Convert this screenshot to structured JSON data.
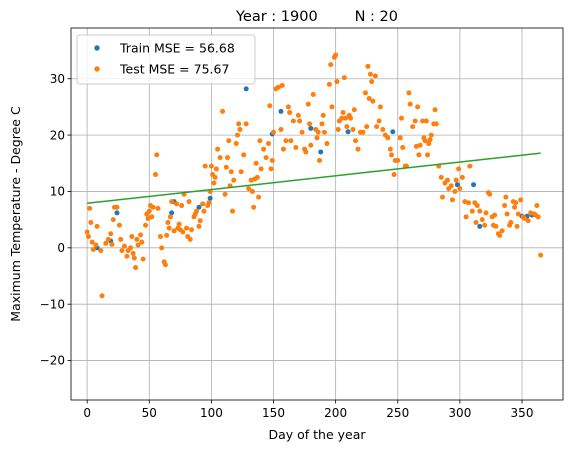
{
  "chart_data": {
    "type": "scatter",
    "title": "Year : 1900        N : 20",
    "xlabel": "Day of the year",
    "ylabel": "Maximum Temperature - Degree C",
    "xlim": [
      -13,
      383
    ],
    "ylim": [
      -27,
      39
    ],
    "xticks": [
      0,
      50,
      100,
      150,
      200,
      250,
      300,
      350
    ],
    "yticks": [
      -20,
      -10,
      0,
      10,
      20,
      30
    ],
    "grid": true,
    "legend_position": "top-left",
    "colors": {
      "train": "#1f77b4",
      "test": "#ff7f0e",
      "fit": "#2ca02c"
    },
    "series": [
      {
        "name": "Train MSE = 56.68",
        "kind": "points",
        "points": [
          [
            8,
            0
          ],
          [
            19,
            1.2
          ],
          [
            24,
            6.2
          ],
          [
            68,
            6.2
          ],
          [
            70,
            8.2
          ],
          [
            90,
            7.2
          ],
          [
            99,
            8.8
          ],
          [
            128,
            28.2
          ],
          [
            149,
            20.2
          ],
          [
            156,
            24.2
          ],
          [
            180,
            21.2
          ],
          [
            188,
            17
          ],
          [
            210,
            20.6
          ],
          [
            246,
            20.6
          ],
          [
            298,
            11.2
          ],
          [
            311,
            11.2
          ],
          [
            316,
            3.8
          ],
          [
            350,
            5.6
          ],
          [
            354,
            5.6
          ],
          [
            358,
            5.8
          ]
        ]
      },
      {
        "name": "Test MSE = 75.67",
        "kind": "points",
        "points": [
          [
            0,
            2.8
          ],
          [
            1,
            2
          ],
          [
            2,
            7
          ],
          [
            3,
            4.5
          ],
          [
            4,
            1
          ],
          [
            5,
            -0.3
          ],
          [
            7,
            0.5
          ],
          [
            8,
            3.8
          ],
          [
            11,
            -0.5
          ],
          [
            12,
            -8.5
          ],
          [
            15,
            0.8
          ],
          [
            17,
            1.5
          ],
          [
            19,
            2.5
          ],
          [
            20,
            0.6
          ],
          [
            21,
            5
          ],
          [
            22,
            7.2
          ],
          [
            24,
            7.2
          ],
          [
            26,
            4
          ],
          [
            27,
            1.5
          ],
          [
            28,
            -0.5
          ],
          [
            30,
            0.3
          ],
          [
            32,
            -1.5
          ],
          [
            33,
            -0.5
          ],
          [
            35,
            0
          ],
          [
            36,
            2
          ],
          [
            37,
            -1
          ],
          [
            38,
            -1.8
          ],
          [
            39,
            -3.5
          ],
          [
            40,
            1.5
          ],
          [
            41,
            0.5
          ],
          [
            43,
            2.3
          ],
          [
            44,
            1
          ],
          [
            45,
            -2
          ],
          [
            47,
            4
          ],
          [
            48,
            6
          ],
          [
            49,
            5.2
          ],
          [
            50,
            6.5
          ],
          [
            51,
            7.5
          ],
          [
            52,
            5.5
          ],
          [
            53,
            7.2
          ],
          [
            55,
            13
          ],
          [
            56,
            16.5
          ],
          [
            57,
            7
          ],
          [
            59,
            2
          ],
          [
            60,
            0
          ],
          [
            62,
            -2.5
          ],
          [
            63,
            -3
          ],
          [
            64,
            2.2
          ],
          [
            65,
            4.5
          ],
          [
            66,
            3.5
          ],
          [
            67,
            5.5
          ],
          [
            68,
            8.2
          ],
          [
            70,
            3
          ],
          [
            72,
            7.8
          ],
          [
            73,
            3.5
          ],
          [
            74,
            4.2
          ],
          [
            75,
            3.2
          ],
          [
            76,
            7.5
          ],
          [
            77,
            2.8
          ],
          [
            78,
            9.5
          ],
          [
            80,
            3.5
          ],
          [
            81,
            2
          ],
          [
            82,
            8.2
          ],
          [
            83,
            1.5
          ],
          [
            84,
            3.2
          ],
          [
            86,
            5.5
          ],
          [
            87,
            6
          ],
          [
            88,
            6.5
          ],
          [
            90,
            3.8
          ],
          [
            91,
            4.8
          ],
          [
            93,
            7.8
          ],
          [
            94,
            6.5
          ],
          [
            95,
            14.5
          ],
          [
            97,
            7.5
          ],
          [
            98,
            8
          ],
          [
            99,
            10
          ],
          [
            100,
            14.5
          ],
          [
            101,
            13
          ],
          [
            102,
            11.5
          ],
          [
            103,
            12.5
          ],
          [
            104,
            14
          ],
          [
            105,
            17.5
          ],
          [
            107,
            16
          ],
          [
            109,
            24.2
          ],
          [
            111,
            9.5
          ],
          [
            112,
            14.3
          ],
          [
            113,
            16
          ],
          [
            114,
            19
          ],
          [
            115,
            11
          ],
          [
            116,
            13.5
          ],
          [
            117,
            6.5
          ],
          [
            118,
            12
          ],
          [
            120,
            18.5
          ],
          [
            121,
            20
          ],
          [
            122,
            22
          ],
          [
            123,
            21
          ],
          [
            124,
            13.5
          ],
          [
            126,
            16.5
          ],
          [
            128,
            22
          ],
          [
            130,
            10.5
          ],
          [
            132,
            12
          ],
          [
            133,
            10
          ],
          [
            134,
            7.2
          ],
          [
            135,
            12.2
          ],
          [
            136,
            15
          ],
          [
            137,
            12.5
          ],
          [
            138,
            9
          ],
          [
            139,
            19
          ],
          [
            140,
            14
          ],
          [
            142,
            17.5
          ],
          [
            144,
            16
          ],
          [
            146,
            18.5
          ],
          [
            147,
            25.2
          ],
          [
            148,
            14
          ],
          [
            149,
            15.5
          ],
          [
            150,
            20.5
          ],
          [
            152,
            28.2
          ],
          [
            154,
            28.5
          ],
          [
            156,
            21
          ],
          [
            157,
            28.8
          ],
          [
            158,
            17.5
          ],
          [
            160,
            19
          ],
          [
            162,
            25
          ],
          [
            163,
            24
          ],
          [
            164,
            19
          ],
          [
            166,
            22.5
          ],
          [
            168,
            17.8
          ],
          [
            170,
            23.5
          ],
          [
            171,
            22.5
          ],
          [
            173,
            20.5
          ],
          [
            175,
            17.5
          ],
          [
            176,
            17
          ],
          [
            178,
            25.5
          ],
          [
            179,
            22
          ],
          [
            180,
            18.2
          ],
          [
            182,
            27.2
          ],
          [
            184,
            21
          ],
          [
            185,
            19.5
          ],
          [
            186,
            20.5
          ],
          [
            187,
            15.5
          ],
          [
            189,
            22
          ],
          [
            190,
            23.5
          ],
          [
            191,
            20.5
          ],
          [
            193,
            18.5
          ],
          [
            195,
            29
          ],
          [
            196,
            32.5
          ],
          [
            197,
            25
          ],
          [
            199,
            33.8
          ],
          [
            200,
            34.2
          ],
          [
            201,
            29.5
          ],
          [
            202,
            21
          ],
          [
            203,
            22.5
          ],
          [
            205,
            23
          ],
          [
            206,
            24
          ],
          [
            207,
            30.2
          ],
          [
            208,
            23
          ],
          [
            209,
            21.5
          ],
          [
            211,
            23.5
          ],
          [
            212,
            23
          ],
          [
            214,
            21
          ],
          [
            215,
            24.5
          ],
          [
            216,
            19
          ],
          [
            218,
            17.5
          ],
          [
            220,
            20.5
          ],
          [
            222,
            20.5
          ],
          [
            224,
            27.5
          ],
          [
            225,
            21.5
          ],
          [
            226,
            32.2
          ],
          [
            227,
            26.5
          ],
          [
            228,
            30.8
          ],
          [
            229,
            29.5
          ],
          [
            230,
            26
          ],
          [
            232,
            30.5
          ],
          [
            233,
            21.5
          ],
          [
            235,
            22.5
          ],
          [
            236,
            25
          ],
          [
            238,
            21
          ],
          [
            240,
            20
          ],
          [
            242,
            19.5
          ],
          [
            244,
            17.5
          ],
          [
            245,
            16.5
          ],
          [
            247,
            13
          ],
          [
            248,
            15.5
          ],
          [
            250,
            15.5
          ],
          [
            252,
            19.5
          ],
          [
            253,
            23
          ],
          [
            254,
            17.8
          ],
          [
            256,
            14.5
          ],
          [
            257,
            14.5
          ],
          [
            259,
            27.5
          ],
          [
            260,
            25.5
          ],
          [
            262,
            21.5
          ],
          [
            264,
            22.5
          ],
          [
            265,
            18
          ],
          [
            266,
            25
          ],
          [
            267,
            16.5
          ],
          [
            268,
            18.2
          ],
          [
            270,
            22.5
          ],
          [
            271,
            19.5
          ],
          [
            272,
            19
          ],
          [
            273,
            22.5
          ],
          [
            274,
            16.5
          ],
          [
            275,
            18.5
          ],
          [
            276,
            19.2
          ],
          [
            277,
            20
          ],
          [
            279,
            22
          ],
          [
            280,
            24.5
          ],
          [
            281,
            22
          ],
          [
            283,
            14.5
          ],
          [
            285,
            12.5
          ],
          [
            286,
            9
          ],
          [
            288,
            11.5
          ],
          [
            290,
            12
          ],
          [
            291,
            10.5
          ],
          [
            293,
            11
          ],
          [
            294,
            8.5
          ],
          [
            296,
            10
          ],
          [
            297,
            12
          ],
          [
            299,
            14
          ],
          [
            300,
            10.5
          ],
          [
            302,
            12.5
          ],
          [
            304,
            8.2
          ],
          [
            305,
            5.5
          ],
          [
            307,
            8
          ],
          [
            308,
            14.5
          ],
          [
            310,
            6.5
          ],
          [
            312,
            8
          ],
          [
            313,
            4.5
          ],
          [
            314,
            7.5
          ],
          [
            316,
            6.5
          ],
          [
            318,
            5
          ],
          [
            320,
            4
          ],
          [
            321,
            6.2
          ],
          [
            323,
            9.8
          ],
          [
            324,
            9.5
          ],
          [
            326,
            5.5
          ],
          [
            327,
            4
          ],
          [
            328,
            5.8
          ],
          [
            329,
            3.8
          ],
          [
            331,
            2.5
          ],
          [
            332,
            2.2
          ],
          [
            334,
            3
          ],
          [
            336,
            7.5
          ],
          [
            337,
            9
          ],
          [
            338,
            6
          ],
          [
            340,
            4
          ],
          [
            341,
            4.5
          ],
          [
            343,
            8.2
          ],
          [
            344,
            7.2
          ],
          [
            345,
            8
          ],
          [
            346,
            3.8
          ],
          [
            347,
            6
          ],
          [
            349,
            8.5
          ],
          [
            351,
            5.5
          ],
          [
            352,
            5.2
          ],
          [
            355,
            4.8
          ],
          [
            357,
            6.2
          ],
          [
            360,
            6
          ],
          [
            361,
            5.8
          ],
          [
            362,
            7.5
          ],
          [
            363,
            5.5
          ],
          [
            365,
            -1.3
          ]
        ]
      },
      {
        "name": "",
        "kind": "line",
        "points": [
          [
            0,
            7.9
          ],
          [
            365,
            16.8
          ]
        ]
      }
    ]
  }
}
